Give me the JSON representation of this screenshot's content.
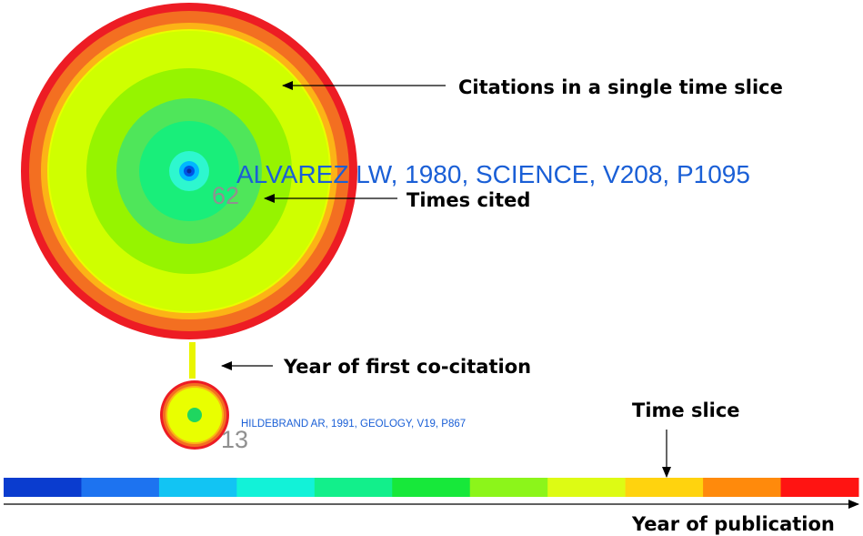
{
  "colors": {
    "label_blue": "#1a5fd6",
    "rings": [
      "#ed1c24",
      "#f36f21",
      "#fcb316",
      "#e9ff00",
      "#cfff00",
      "#96f400",
      "#4fe65a",
      "#19ee7a",
      "#2ef7cf",
      "#00b7ff",
      "#0055e6"
    ],
    "time_slices": [
      "#0a3ccf",
      "#1d73f0",
      "#12c4f3",
      "#12f2d8",
      "#12ef8b",
      "#17e83a",
      "#8cf51a",
      "#ddfb14",
      "#ffd30e",
      "#ff8a0c",
      "#ff1412"
    ]
  },
  "nodes": {
    "large": {
      "label": "ALVAREZ LW, 1980, SCIENCE, V208, P1095",
      "times_cited": "62"
    },
    "small": {
      "label": "HILDEBRAND AR, 1991, GEOLOGY, V19, P867",
      "times_cited": "13"
    }
  },
  "annotations": {
    "citations_slice": "Citations in a single time slice",
    "times_cited": "Times cited",
    "first_cocitation": "Year of first co-citation",
    "time_slice": "Time slice",
    "year_publication": "Year of publication"
  },
  "icons": {
    "arrow": "arrow-left-icon",
    "arrow_down": "arrow-down-icon",
    "arrow_right": "arrow-right-icon"
  }
}
